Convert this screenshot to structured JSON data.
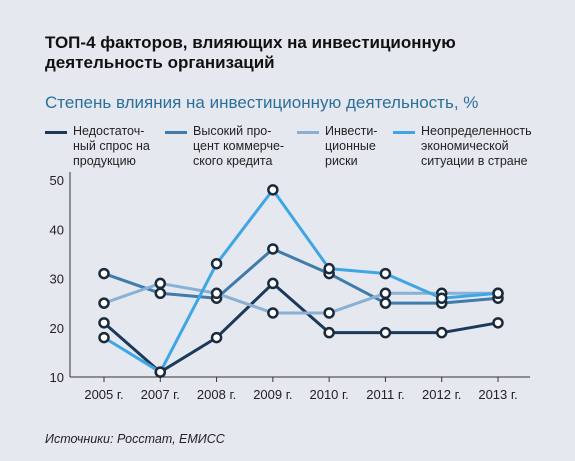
{
  "title": "ТОП-4 факторов, влияющих на инвестиционную деятельность организаций",
  "subtitle": "Степень влияния на инвестиционную деятельность, %",
  "source": "Источники: Росстат, ЕМИСС",
  "chart_data": {
    "type": "line",
    "categories": [
      "2005 г.",
      "2007 г.",
      "2008 г.",
      "2009 г.",
      "2010 г.",
      "2011 г.",
      "2012 г.",
      "2013 г."
    ],
    "ylim": [
      10,
      50
    ],
    "yticks": [
      10,
      20,
      30,
      40,
      50
    ],
    "grid": false,
    "legend_position": "top",
    "series": [
      {
        "name": "Недостаточ-\nный спрос на\nпродукцию",
        "color": "#1a3a5c",
        "values": [
          21,
          11,
          18,
          29,
          19,
          19,
          19,
          21
        ]
      },
      {
        "name": "Высокий про-\nцент коммерче-\nского кредита",
        "color": "#3f7bab",
        "values": [
          31,
          27,
          26,
          36,
          31,
          25,
          25,
          26
        ]
      },
      {
        "name": "Инвести-\nционные\nриски",
        "color": "#8ab0d4",
        "values": [
          25,
          29,
          27,
          23,
          23,
          27,
          27,
          27
        ]
      },
      {
        "name": "Неопределенность\nэкономической\nситуации в стране",
        "color": "#3fa6e6",
        "values": [
          18,
          11,
          33,
          48,
          32,
          31,
          26,
          27
        ]
      }
    ]
  }
}
